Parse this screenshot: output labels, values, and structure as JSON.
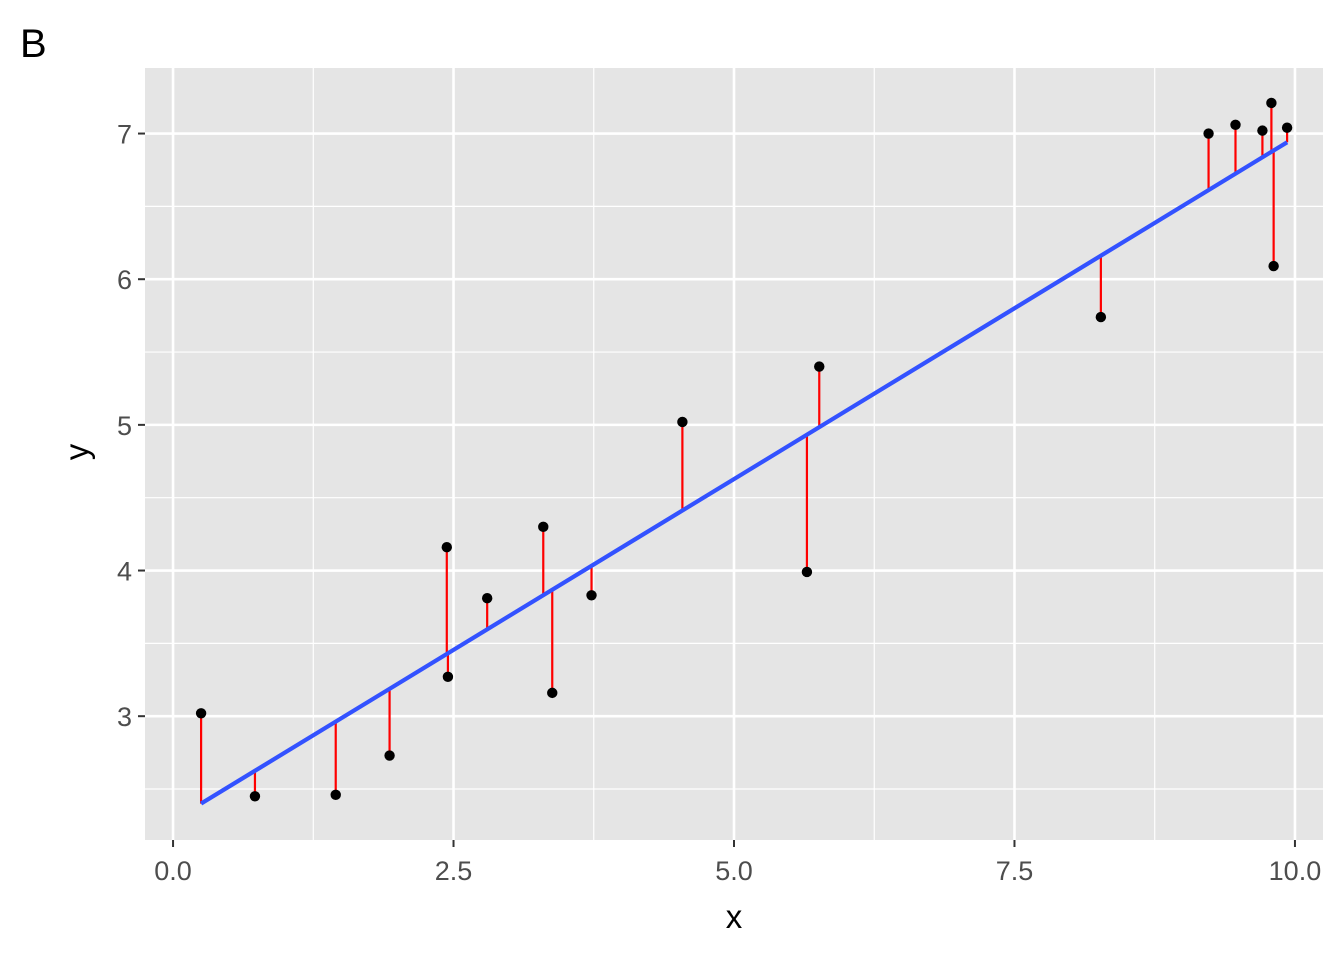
{
  "panel_tag": "B",
  "chart_data": {
    "type": "scatter",
    "title": "",
    "xlabel": "x",
    "ylabel": "y",
    "xlim": [
      -0.25,
      10.25
    ],
    "ylim": [
      2.15,
      7.45
    ],
    "xticks": [
      0.0,
      2.5,
      5.0,
      7.5,
      10.0
    ],
    "xtick_labels": [
      "0.0",
      "2.5",
      "5.0",
      "7.5",
      "10.0"
    ],
    "yticks": [
      3,
      4,
      5,
      6,
      7
    ],
    "ytick_labels": [
      "3",
      "4",
      "5",
      "6",
      "7"
    ],
    "grid": true,
    "legend": "none",
    "points": [
      {
        "x": 0.25,
        "y": 3.02
      },
      {
        "x": 0.73,
        "y": 2.45
      },
      {
        "x": 1.45,
        "y": 2.46
      },
      {
        "x": 1.93,
        "y": 2.73
      },
      {
        "x": 2.44,
        "y": 4.16
      },
      {
        "x": 2.45,
        "y": 3.27
      },
      {
        "x": 2.8,
        "y": 3.81
      },
      {
        "x": 3.3,
        "y": 4.3
      },
      {
        "x": 3.38,
        "y": 3.16
      },
      {
        "x": 3.73,
        "y": 3.83
      },
      {
        "x": 4.54,
        "y": 5.02
      },
      {
        "x": 5.65,
        "y": 3.99
      },
      {
        "x": 5.76,
        "y": 5.4
      },
      {
        "x": 8.27,
        "y": 5.74
      },
      {
        "x": 9.23,
        "y": 7.0
      },
      {
        "x": 9.47,
        "y": 7.06
      },
      {
        "x": 9.71,
        "y": 7.02
      },
      {
        "x": 9.79,
        "y": 7.21
      },
      {
        "x": 9.81,
        "y": 6.09
      },
      {
        "x": 9.93,
        "y": 7.04
      }
    ],
    "fit_line": {
      "x0": 0.25,
      "y0": 2.4,
      "x1": 9.93,
      "y1": 6.94
    },
    "colors": {
      "panel_bg": "#e5e5e5",
      "grid": "#ffffff",
      "point": "#000000",
      "residual": "#ff0000",
      "fit": "#3352ff"
    }
  }
}
